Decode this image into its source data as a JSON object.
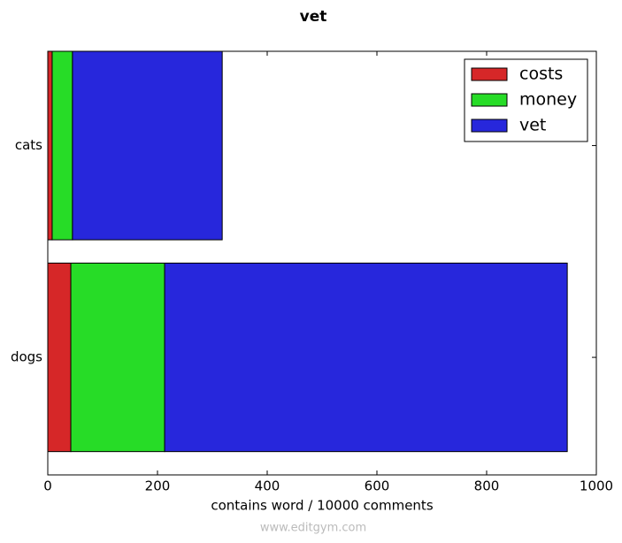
{
  "chart_data": {
    "type": "barh_stacked",
    "title": "vet",
    "xlabel": "contains word / 10000 comments",
    "categories": [
      "cats",
      "dogs"
    ],
    "series": [
      {
        "name": "costs",
        "color": "#d62728",
        "values": [
          8,
          42
        ]
      },
      {
        "name": "money",
        "color": "#27dc27",
        "values": [
          37,
          171
        ]
      },
      {
        "name": "vet",
        "color": "#2727dc",
        "values": [
          273,
          734
        ]
      }
    ],
    "xlim": [
      0,
      1000
    ],
    "xticks": [
      0,
      200,
      400,
      600,
      800,
      1000
    ],
    "legend": "upper-right",
    "watermark": "www.editgym.com"
  }
}
